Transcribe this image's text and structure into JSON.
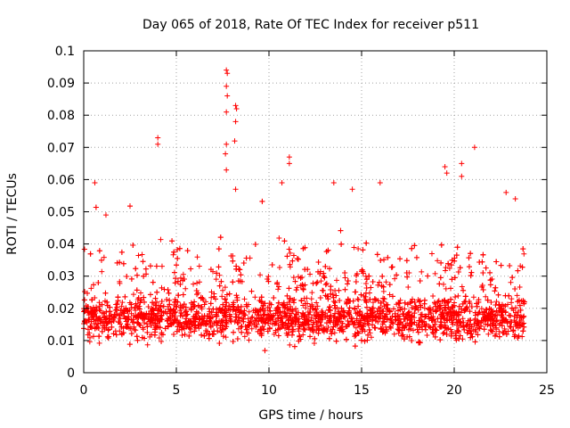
{
  "chart_data": {
    "type": "scatter",
    "title": "Day 065 of 2018, Rate Of TEC Index for receiver p511",
    "xlabel": "GPS time / hours",
    "ylabel": "ROTI / TECUs",
    "xlim": [
      0,
      25
    ],
    "ylim": [
      0,
      0.1
    ],
    "grid": true,
    "marker": "+",
    "marker_color": "#ff0000",
    "x_ticks": [
      0,
      5,
      10,
      15,
      20,
      25
    ],
    "x_tick_labels": [
      "0",
      "5",
      "10",
      "15",
      "20",
      "25"
    ],
    "y_ticks": [
      0,
      0.01,
      0.02,
      0.03,
      0.04,
      0.05,
      0.06,
      0.07,
      0.08,
      0.09,
      0.1
    ],
    "y_tick_labels": [
      "0",
      "0.01",
      "0.02",
      "0.03",
      "0.04",
      "0.05",
      "0.06",
      "0.07",
      "0.08",
      "0.09",
      "0.1"
    ],
    "series": [
      {
        "name": "ROTI",
        "time_range_hours": [
          0,
          23.8
        ],
        "typical_band": [
          0.006,
          0.025
        ],
        "outliers": [
          {
            "x": 0.6,
            "y": 0.059
          },
          {
            "x": 1.2,
            "y": 0.049
          },
          {
            "x": 4.0,
            "y": 0.073
          },
          {
            "x": 4.0,
            "y": 0.071
          },
          {
            "x": 7.7,
            "y": 0.094
          },
          {
            "x": 7.75,
            "y": 0.093
          },
          {
            "x": 7.7,
            "y": 0.089
          },
          {
            "x": 7.75,
            "y": 0.086
          },
          {
            "x": 7.7,
            "y": 0.081
          },
          {
            "x": 7.7,
            "y": 0.071
          },
          {
            "x": 7.65,
            "y": 0.068
          },
          {
            "x": 7.7,
            "y": 0.063
          },
          {
            "x": 8.2,
            "y": 0.083
          },
          {
            "x": 8.25,
            "y": 0.082
          },
          {
            "x": 8.2,
            "y": 0.078
          },
          {
            "x": 8.15,
            "y": 0.072
          },
          {
            "x": 8.2,
            "y": 0.057
          },
          {
            "x": 11.1,
            "y": 0.067
          },
          {
            "x": 11.1,
            "y": 0.065
          },
          {
            "x": 10.7,
            "y": 0.059
          },
          {
            "x": 13.5,
            "y": 0.059
          },
          {
            "x": 14.5,
            "y": 0.057
          },
          {
            "x": 16.0,
            "y": 0.059
          },
          {
            "x": 19.5,
            "y": 0.064
          },
          {
            "x": 19.6,
            "y": 0.062
          },
          {
            "x": 20.4,
            "y": 0.065
          },
          {
            "x": 20.4,
            "y": 0.061
          },
          {
            "x": 21.1,
            "y": 0.07
          },
          {
            "x": 22.8,
            "y": 0.056
          },
          {
            "x": 23.3,
            "y": 0.054
          }
        ]
      }
    ]
  }
}
